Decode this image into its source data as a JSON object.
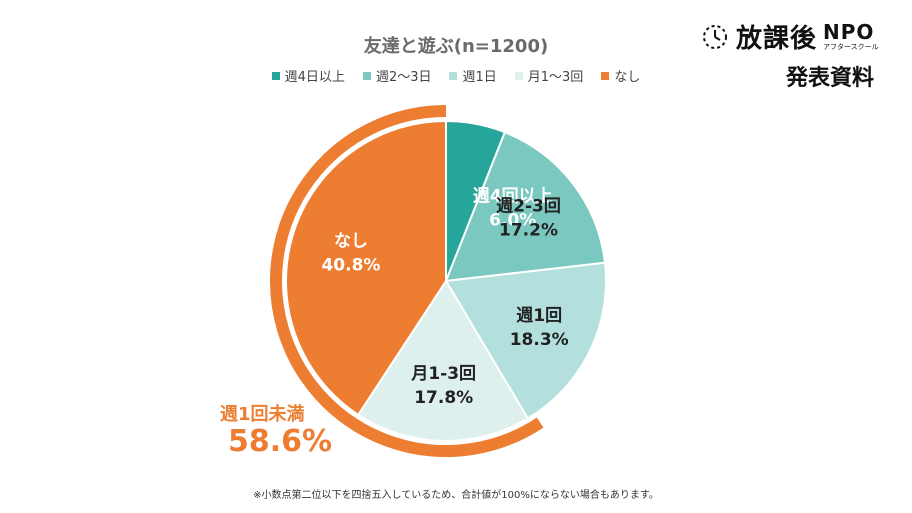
{
  "chart_data": {
    "type": "pie",
    "title": "友達と遊ぶ(n=1200)",
    "categories": [
      "週4日以上",
      "週2〜3日",
      "週1日",
      "月1〜3回",
      "なし"
    ],
    "segment_labels": [
      "週4回以上",
      "週2-3回",
      "週1回",
      "月1-3回",
      "なし"
    ],
    "values": [
      6.0,
      17.2,
      18.3,
      17.8,
      40.8
    ],
    "value_labels": [
      "6.0%",
      "17.2%",
      "18.3%",
      "17.8%",
      "40.8%"
    ],
    "colors": [
      "#26a69a",
      "#7ac8c0",
      "#b3e0dd",
      "#ddf0ee",
      "#ed7d31"
    ],
    "label_colors": [
      "#ffffff",
      "#222222",
      "#222222",
      "#222222",
      "#ffffff"
    ],
    "summary": {
      "label": "週1回未満",
      "value": "58.6%",
      "color": "#ed7d31"
    },
    "legend_position": "top"
  },
  "brand": {
    "name": "放課後",
    "npo": "NPO",
    "sub": "アフタースクール",
    "doc_label": "発表資料"
  },
  "footnote": "※小数点第二位以下を四捨五入しているため、合計値が100%にならない場合もあります。"
}
